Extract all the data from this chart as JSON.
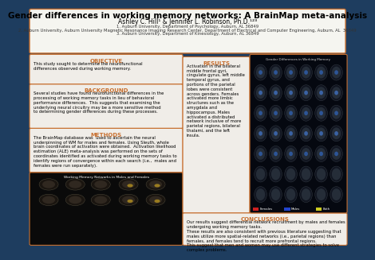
{
  "bg_color": "#1e3d5f",
  "header_bg": "#f5f5f0",
  "box_bg": "#f0ede8",
  "border_color": "#c87030",
  "title": "Gender differences in working memory networks: A BrainMap meta-analysis",
  "authors": "Ashley C. Hill¹ & Jennifer L. Robinson, Ph.D.¹²³",
  "affil1": "1. Auburn University, Department of Psychology, Auburn, AL 36849",
  "affil2": "2. Auburn University, Auburn University Magnetic Resonance Imaging Research Center, Department of Electrical and Computer Engineering, Auburn, AL  36849",
  "affil3": "3. Auburn University, Department of Kinesiology, Auburn, AL 36849",
  "obj_title": "OBJECTIVE",
  "obj_text": "This study sought to determine the neurofunctional\ndifferences observed during working memory.",
  "bg_title": "BACKGROUND",
  "bg_text": "Several studies have found neurofunctional differences in the\nprocessing of working memory tasks in lieu of behavioral\nperformance differences.  This suggests that examining the\nunderlying neural circuitry may be a more sensitive method\nto determining gender differences during these processes.",
  "meth_title": "METHODS",
  "meth_text": "The BrainMap database was  used to ascertain the neural\nunderpinning of WM for males and females. Using Sleuth, whole\nbrain coordinates of activation were obtained.  Activation likelihood\nestimation (ALE) meta-analysis was performed on the sets of\ncoordinates identified as activated during working memory tasks to\nidentify regions of convergence within each search (i.e.,  males and\nfemales were run separately).",
  "res_title": "RESULTS",
  "res_text": "Activation in the bilateral\nmiddle frontal gyri,\ncingulate gyrus, left middle\ntemporal gyrus, and\nportions of the parietal\nlobes were consistent\nacross genders. Females\nactivated more limbic\nstructures such as the\namygdala and\nhippocampus. Males\nactivated a distributed\nnetwork inclusive of more\nparietal regions, bilateral\nthalami, and the left\ninsula.",
  "conc_title": "CONCLUSSIONS",
  "conc_text": "Our results suggest differential network recruitment by males and females\nundergoing working memory tasks.\nThese results are also consistent with previous literature suggesting that\nmales utilize more spatial-related networks (i.e., parietal regions) than\nfemales, and females tend to recruit more prefrontal regions.\nThis suggest that men and women may use different strategies to solve\ncomplex problems.",
  "brain_img_title": "Gender Differences in Working Memory",
  "brain_bottom_img": "Working Memory Networks in Males and Females",
  "title_fontsize": 7.5,
  "authors_fontsize": 5.5,
  "affil_fontsize": 3.8,
  "section_title_fontsize": 5,
  "body_fontsize": 3.8
}
